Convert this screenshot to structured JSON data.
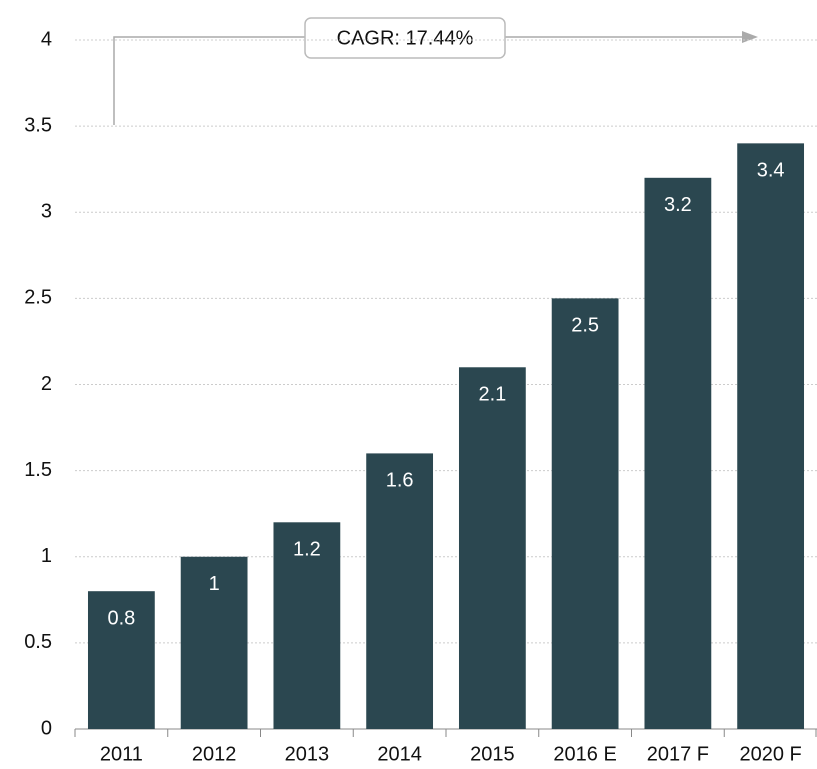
{
  "chart_data": {
    "type": "bar",
    "categories": [
      "2011",
      "2012",
      "2013",
      "2014",
      "2015",
      "2016 E",
      "2017 F",
      "2020 F"
    ],
    "values": [
      0.8,
      1,
      1.2,
      1.6,
      2.1,
      2.5,
      3.2,
      3.4
    ],
    "color": "#2b4750",
    "ylim": [
      0,
      4
    ],
    "yticks": [
      0,
      0.5,
      1,
      1.5,
      2,
      2.5,
      3,
      3.5,
      4
    ],
    "grid": true,
    "annotation": "CAGR: 17.44%"
  }
}
